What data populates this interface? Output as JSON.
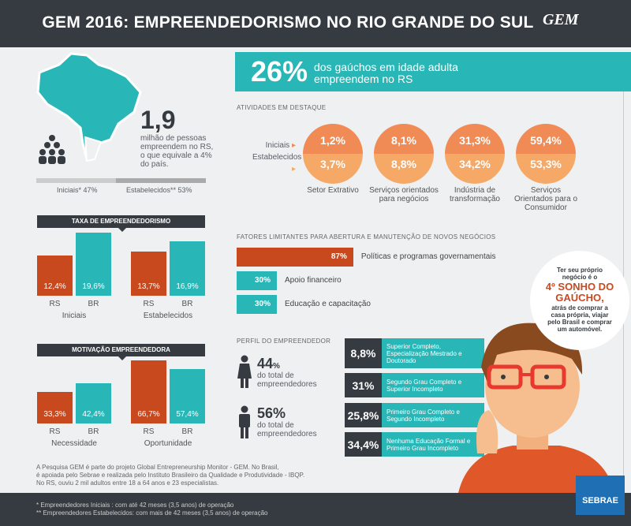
{
  "header": {
    "title": "GEM 2016: EMPREENDEDORISMO NO RIO GRANDE DO SUL",
    "logo": "GEM"
  },
  "intro": {
    "big": "1,9",
    "text": "milhão de pessoas empreendem no RS, o que equivale a 4% do país.",
    "iniciais": "Iniciais* 47%",
    "estabelecidos": "Estabelecidos** 53%",
    "iniciais_share": 47
  },
  "banner": {
    "percent": "26%",
    "text": "dos gaúchos em idade adulta empreendem no RS"
  },
  "atividades": {
    "title": "ATIVIDADES EM DESTAQUE",
    "legend_iniciais": "Iniciais",
    "legend_estabelecidos": "Estabelecidos",
    "items": [
      {
        "iniciais": "1,2%",
        "estabelecidos": "3,7%",
        "label": "Setor Extrativo"
      },
      {
        "iniciais": "8,1%",
        "estabelecidos": "8,8%",
        "label": "Serviços orientados para negócios"
      },
      {
        "iniciais": "31,3%",
        "estabelecidos": "34,2%",
        "label": "Indústria de transformação"
      },
      {
        "iniciais": "59,4%",
        "estabelecidos": "53,3%",
        "label": "Serviços Orientados para o Consumidor"
      }
    ]
  },
  "fatores": {
    "title": "FATORES LIMITANTES PARA ABERTURA E MANUTENÇÃO DE NOVOS NEGÓCIOS",
    "items": [
      {
        "value": 87,
        "label_value": "87%",
        "label": "Políticas e programas governamentais",
        "color": "#c9491f"
      },
      {
        "value": 30,
        "label_value": "30%",
        "label": "Apoio financeiro",
        "color": "#28b6b6"
      },
      {
        "value": 30,
        "label_value": "30%",
        "label": "Educação e capacitação",
        "color": "#28b6b6"
      }
    ]
  },
  "perfil": {
    "title": "PERFIL DO EMPREENDEDOR",
    "female_pct": "44",
    "female_unit": "%",
    "female_text": "do total de empreendedores",
    "male_pct": "56%",
    "male_text": "do total de empreendedores",
    "educacao": [
      {
        "value": "8,8%",
        "label": "Superior Completo, Especialização Mestrado e Doutorado"
      },
      {
        "value": "31%",
        "label": "Segundo Grau Completo e Superior Incompleto"
      },
      {
        "value": "25,8%",
        "label": "Primeiro Grau Completo e Segundo Incompleto"
      },
      {
        "value": "34,4%",
        "label": "Nenhuma Educação Formal e Primeiro Grau Incompleto"
      }
    ]
  },
  "bubble": {
    "pre": "Ter seu próprio negócio é o",
    "highlight": "4º SONHO DO GAÚCHO,",
    "post": "atrás de comprar a casa própria, viajar pelo Brasil e comprar um automóvel."
  },
  "chart_data": [
    {
      "type": "bar",
      "title": "TAXA DE EMPREENDEDORISMO",
      "groups": [
        "Iniciais",
        "Estabelecidos"
      ],
      "categories": [
        "RS",
        "BR"
      ],
      "values": [
        [
          12.4,
          19.6
        ],
        [
          13.7,
          16.9
        ]
      ],
      "labels": [
        [
          "12,4%",
          "19,6%"
        ],
        [
          "13,7%",
          "16,9%"
        ]
      ],
      "colors": [
        "#c9491f",
        "#28b6b6"
      ]
    },
    {
      "type": "bar",
      "title": "MOTIVAÇÃO EMPREENDEDORA",
      "groups": [
        "Necessidade",
        "Oportunidade"
      ],
      "categories": [
        "RS",
        "BR"
      ],
      "values": [
        [
          33.3,
          42.4
        ],
        [
          66.7,
          57.4
        ]
      ],
      "labels": [
        [
          "33,3%",
          "42,4%"
        ],
        [
          "66,7%",
          "57,4%"
        ]
      ],
      "colors": [
        "#c9491f",
        "#28b6b6"
      ]
    }
  ],
  "note": {
    "lines": [
      "A Pesquisa GEM é parte do projeto Global Entrepreneurship Monitor - GEM. No Brasil,",
      "é apoiada pelo Sebrae e realizada pelo Instituto Brasileiro da Qualidade e Produtividade - IBQP.",
      "No RS, ouviu 2 mil adultos entre 18 a 64 anos e 23 especialistas."
    ]
  },
  "footer": {
    "lines": [
      "* Empreendedores Iniciais : com até 42 meses (3,5 anos) de operação",
      "** Empreendedores Estabelecidos: com mais de 42 meses (3,5 anos) de operação"
    ],
    "logo": "SEBRAE"
  }
}
